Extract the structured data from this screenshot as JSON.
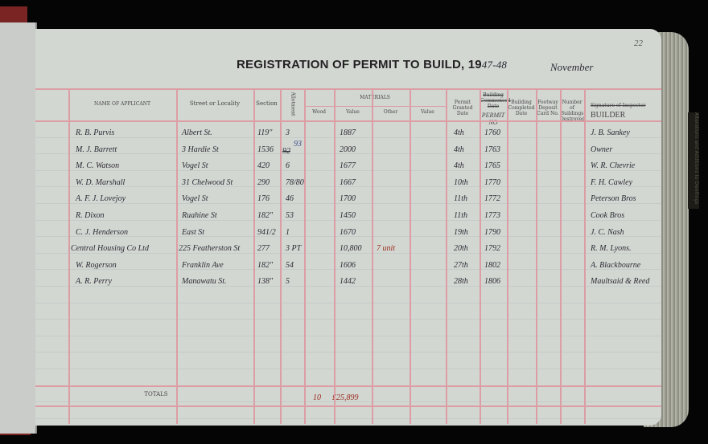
{
  "page_number": "22",
  "title": "REGISTRATION OF PERMIT TO BUILD, 19",
  "year": "47-48",
  "month": "November",
  "side_tab": "Alterations and Additions to Dwellings",
  "columns": {
    "name": "NAME OF APPLICANT",
    "street": "Street or Locality",
    "section": "Section",
    "allotment": "Allotment",
    "materials": "MATERIALS",
    "wood": "Wood",
    "value1": "Value",
    "other": "Other",
    "value2": "Value",
    "permit_granted": "Permit Granted Date",
    "building_commenced": "Building Commenced Date",
    "permit_no": "PERMIT NO",
    "building_completed": "Building Completed Date",
    "footway": "Footway Deposit Card No.",
    "buildings_destroyed": "Number of Buildings Destroyed",
    "inspector": "Signature of Inspector",
    "builder": "BUILDER"
  },
  "rows": [
    {
      "name": "R. B. Purvis",
      "street": "Albert St.",
      "section": "119\"",
      "allotment": "3",
      "value": "1887",
      "other": "",
      "date": "4th",
      "permit": "1760",
      "builder": "J. B. Sankey"
    },
    {
      "name": "M. J. Barrett",
      "street": "3 Hardie St",
      "section": "1536",
      "allotment": "93",
      "allotment_struck": "92",
      "value": "2000",
      "other": "",
      "date": "4th",
      "permit": "1763",
      "builder": "Owner"
    },
    {
      "name": "M. C. Watson",
      "street": "Vogel St",
      "section": "420",
      "allotment": "6",
      "value": "1677",
      "other": "",
      "date": "4th",
      "permit": "1765",
      "builder": "W. R. Chevrie"
    },
    {
      "name": "W. D. Marshall",
      "street": "31 Chelwood St",
      "section": "290",
      "allotment": "78/80",
      "value": "1667",
      "other": "",
      "date": "10th",
      "permit": "1770",
      "builder": "F. H. Cawley"
    },
    {
      "name": "A. F. J. Lovejoy",
      "street": "Vogel St",
      "section": "176",
      "allotment": "46",
      "value": "1700",
      "other": "",
      "date": "11th",
      "permit": "1772",
      "builder": "Peterson Bros"
    },
    {
      "name": "R. Dixon",
      "street": "Ruahine St",
      "section": "182\"",
      "allotment": "53",
      "value": "1450",
      "other": "",
      "date": "11th",
      "permit": "1773",
      "builder": "Cook Bros"
    },
    {
      "name": "C. J. Henderson",
      "street": "East St",
      "section": "941/2",
      "allotment": "1",
      "value": "1670",
      "other": "",
      "date": "19th",
      "permit": "1790",
      "builder": "J. C. Nash"
    },
    {
      "name": "Central Housing Co Ltd",
      "street": "225 Featherston St",
      "section": "277",
      "allotment": "3 PT",
      "value": "10,800",
      "other": "7 unit",
      "date": "20th",
      "permit": "1792",
      "builder": "R. M. Lyons."
    },
    {
      "name": "W. Rogerson",
      "street": "Franklin Ave",
      "section": "182\"",
      "allotment": "54",
      "value": "1606",
      "other": "",
      "date": "27th",
      "permit": "1802",
      "builder": "A. Blackbourne"
    },
    {
      "name": "A. R. Perry",
      "street": "Manawatu St.",
      "section": "138\"",
      "allotment": "5",
      "value": "1442",
      "other": "",
      "date": "28th",
      "permit": "1806",
      "builder": "Maultsaid & Reed"
    }
  ],
  "totals": {
    "label": "TOTALS",
    "count": "10",
    "amount": "£25,899"
  }
}
